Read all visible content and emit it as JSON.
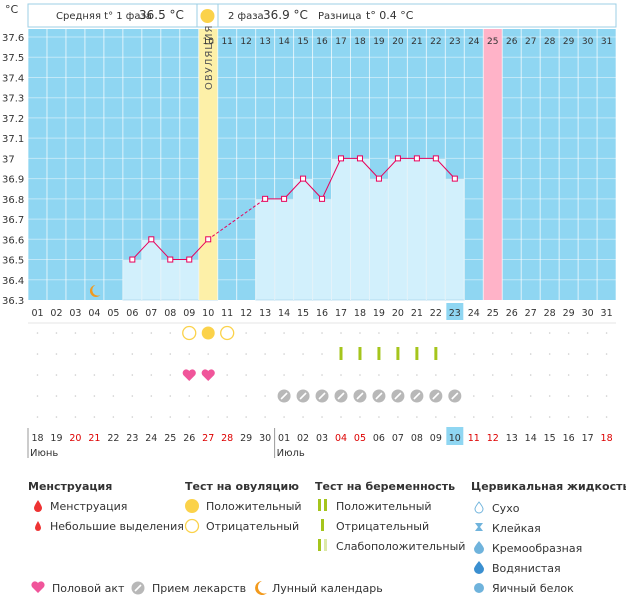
{
  "header": {
    "unit": "°C",
    "phase1_label": "Средняя t° 1 фаза",
    "phase1_value": "36.5 °C",
    "phase2_label": "2 фаза",
    "phase2_value": "36.9 °C",
    "diff_label": "Разница",
    "diff_value": "t° 0.4 °C"
  },
  "colors": {
    "chart_bg": "#8fd6f2",
    "bar_fill": "#d2f0fc",
    "ovulation": "#fdf0a8",
    "period": "#ffb3c8",
    "line": "#e8005a",
    "red_text": "#dd0000",
    "sun": "#fbd24a",
    "heart": "#f0559a",
    "pill": "#b8b8b8",
    "test_green": "#a5c51c",
    "moon": "#f29a1d",
    "today": "#8fd6f2"
  },
  "chart_data": {
    "type": "line",
    "ylim": [
      36.3,
      37.6
    ],
    "yticks": [
      "36.3",
      "36.4",
      "36.5",
      "36.6",
      "36.7",
      "36.8",
      "36.9",
      "37",
      "37.1",
      "37.2",
      "37.3",
      "37.4",
      "37.5",
      "37.6"
    ],
    "cycle_days": [
      "01",
      "02",
      "03",
      "04",
      "05",
      "06",
      "07",
      "08",
      "09",
      "10",
      "11",
      "12",
      "13",
      "14",
      "15",
      "16",
      "17",
      "18",
      "19",
      "20",
      "21",
      "22",
      "23",
      "24",
      "25",
      "26",
      "27",
      "28",
      "29",
      "30",
      "31"
    ],
    "series": [
      {
        "x": [
          6,
          7,
          8,
          9,
          10,
          13,
          14,
          15,
          16,
          17,
          18,
          19,
          20,
          21,
          22,
          23
        ],
        "values": [
          36.5,
          36.6,
          36.5,
          36.5,
          36.6,
          36.8,
          36.8,
          36.9,
          36.8,
          37.0,
          37.0,
          36.9,
          37.0,
          37.0,
          37.0,
          36.9
        ]
      }
    ],
    "ovulation_label": "ОВУЛЯЦИЯ",
    "ovulation_day": 10,
    "period_day": 25,
    "today_day": 23,
    "moon_day": 4
  },
  "markers": {
    "ovulation_test": [
      {
        "day": 9,
        "type": "negative"
      },
      {
        "day": 10,
        "type": "positive"
      },
      {
        "day": 11,
        "type": "negative"
      }
    ],
    "pregnancy_test_days": [
      17,
      18,
      19,
      20,
      21,
      22
    ],
    "intercourse_days": [
      9,
      10
    ],
    "medication_days": [
      14,
      15,
      16,
      17,
      18,
      19,
      20,
      21,
      22,
      23
    ]
  },
  "calendar": {
    "dates": [
      "18",
      "19",
      "20",
      "21",
      "22",
      "23",
      "24",
      "25",
      "26",
      "27",
      "28",
      "29",
      "30",
      "01",
      "02",
      "03",
      "04",
      "05",
      "06",
      "07",
      "08",
      "09",
      "10",
      "11",
      "12",
      "13",
      "14",
      "15",
      "16",
      "17",
      "18"
    ],
    "red_dates": [
      3,
      4,
      10,
      11,
      17,
      18,
      24,
      25,
      31
    ],
    "months": [
      {
        "day": 1,
        "label": "Июнь"
      },
      {
        "day": 14,
        "label": "Июль"
      }
    ]
  },
  "legend": {
    "menstruation": {
      "title": "Менструация",
      "items": [
        "Менструация",
        "Небольшие выделения"
      ]
    },
    "ovulation_test": {
      "title": "Тест на овуляцию",
      "items": [
        "Положительный",
        "Отрицательный"
      ]
    },
    "pregnancy_test": {
      "title": "Тест на беременность",
      "items": [
        "Положительный",
        "Отрицательный",
        "Слабоположительный"
      ]
    },
    "cervical": {
      "title": "Цервикальная жидкость",
      "items": [
        "Сухо",
        "Клейкая",
        "Кремообразная",
        "Водянистая",
        "Яичный белок"
      ]
    },
    "bottom": [
      "Половой акт",
      "Прием лекарств",
      "Лунный календарь"
    ]
  }
}
